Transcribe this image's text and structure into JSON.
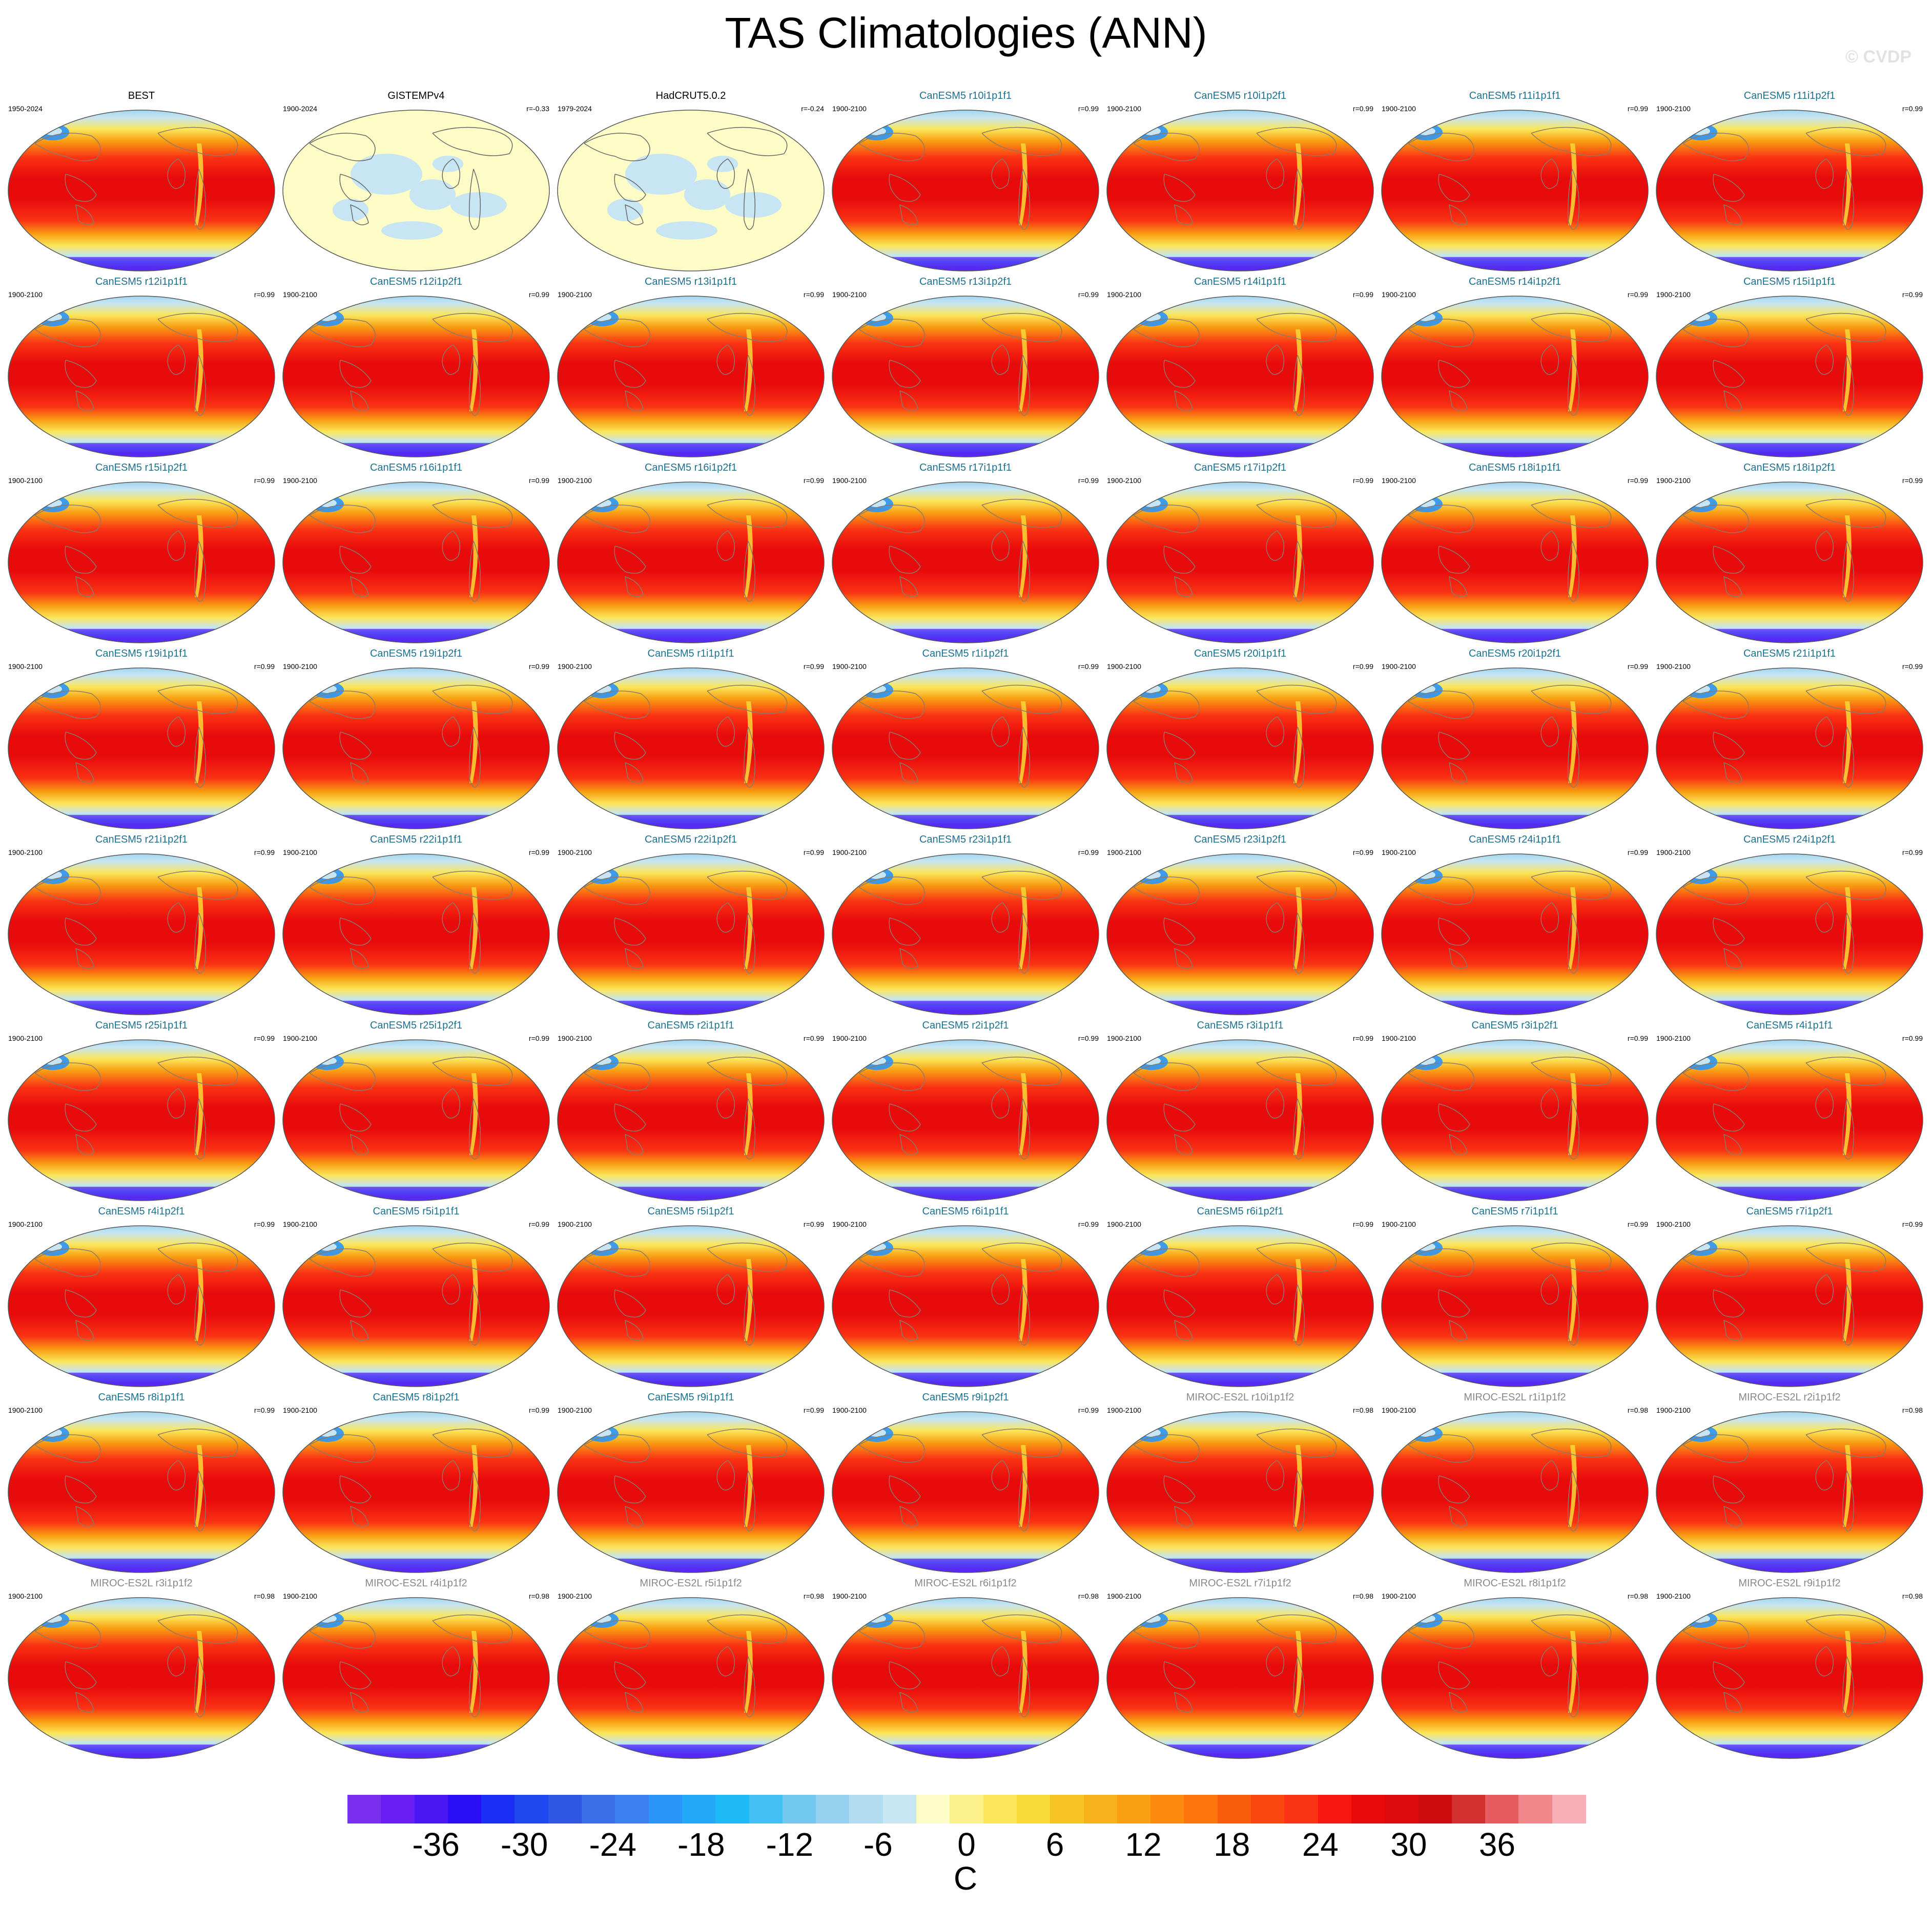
{
  "chart_data": {
    "type": "heatmap",
    "title": "TAS Climatologies (ANN)",
    "watermark": "© CVDP",
    "grid": {
      "rows": 9,
      "cols": 7
    },
    "panels": [
      {
        "title": "BEST",
        "years": "1950-2024",
        "r": "",
        "group": "obs"
      },
      {
        "title": "GISTEMPv4",
        "years": "1900-2024",
        "r": "r=-0.33",
        "group": "obs-sparse"
      },
      {
        "title": "HadCRUT5.0.2",
        "years": "1979-2024",
        "r": "r=-0.24",
        "group": "obs-sparse"
      },
      {
        "title": "CanESM5 r10i1p1f1",
        "years": "1900-2100",
        "r": "r=0.99",
        "group": "canesm"
      },
      {
        "title": "CanESM5 r10i1p2f1",
        "years": "1900-2100",
        "r": "r=0.99",
        "group": "canesm"
      },
      {
        "title": "CanESM5 r11i1p1f1",
        "years": "1900-2100",
        "r": "r=0.99",
        "group": "canesm"
      },
      {
        "title": "CanESM5 r11i1p2f1",
        "years": "1900-2100",
        "r": "r=0.99",
        "group": "canesm"
      },
      {
        "title": "CanESM5 r12i1p1f1",
        "years": "1900-2100",
        "r": "r=0.99",
        "group": "canesm"
      },
      {
        "title": "CanESM5 r12i1p2f1",
        "years": "1900-2100",
        "r": "r=0.99",
        "group": "canesm"
      },
      {
        "title": "CanESM5 r13i1p1f1",
        "years": "1900-2100",
        "r": "r=0.99",
        "group": "canesm"
      },
      {
        "title": "CanESM5 r13i1p2f1",
        "years": "1900-2100",
        "r": "r=0.99",
        "group": "canesm"
      },
      {
        "title": "CanESM5 r14i1p1f1",
        "years": "1900-2100",
        "r": "r=0.99",
        "group": "canesm"
      },
      {
        "title": "CanESM5 r14i1p2f1",
        "years": "1900-2100",
        "r": "r=0.99",
        "group": "canesm"
      },
      {
        "title": "CanESM5 r15i1p1f1",
        "years": "1900-2100",
        "r": "r=0.99",
        "group": "canesm"
      },
      {
        "title": "CanESM5 r15i1p2f1",
        "years": "1900-2100",
        "r": "r=0.99",
        "group": "canesm"
      },
      {
        "title": "CanESM5 r16i1p1f1",
        "years": "1900-2100",
        "r": "r=0.99",
        "group": "canesm"
      },
      {
        "title": "CanESM5 r16i1p2f1",
        "years": "1900-2100",
        "r": "r=0.99",
        "group": "canesm"
      },
      {
        "title": "CanESM5 r17i1p1f1",
        "years": "1900-2100",
        "r": "r=0.99",
        "group": "canesm"
      },
      {
        "title": "CanESM5 r17i1p2f1",
        "years": "1900-2100",
        "r": "r=0.99",
        "group": "canesm"
      },
      {
        "title": "CanESM5 r18i1p1f1",
        "years": "1900-2100",
        "r": "r=0.99",
        "group": "canesm"
      },
      {
        "title": "CanESM5 r18i1p2f1",
        "years": "1900-2100",
        "r": "r=0.99",
        "group": "canesm"
      },
      {
        "title": "CanESM5 r19i1p1f1",
        "years": "1900-2100",
        "r": "r=0.99",
        "group": "canesm"
      },
      {
        "title": "CanESM5 r19i1p2f1",
        "years": "1900-2100",
        "r": "r=0.99",
        "group": "canesm"
      },
      {
        "title": "CanESM5 r1i1p1f1",
        "years": "1900-2100",
        "r": "r=0.99",
        "group": "canesm"
      },
      {
        "title": "CanESM5 r1i1p2f1",
        "years": "1900-2100",
        "r": "r=0.99",
        "group": "canesm"
      },
      {
        "title": "CanESM5 r20i1p1f1",
        "years": "1900-2100",
        "r": "r=0.99",
        "group": "canesm"
      },
      {
        "title": "CanESM5 r20i1p2f1",
        "years": "1900-2100",
        "r": "r=0.99",
        "group": "canesm"
      },
      {
        "title": "CanESM5 r21i1p1f1",
        "years": "1900-2100",
        "r": "r=0.99",
        "group": "canesm"
      },
      {
        "title": "CanESM5 r21i1p2f1",
        "years": "1900-2100",
        "r": "r=0.99",
        "group": "canesm"
      },
      {
        "title": "CanESM5 r22i1p1f1",
        "years": "1900-2100",
        "r": "r=0.99",
        "group": "canesm"
      },
      {
        "title": "CanESM5 r22i1p2f1",
        "years": "1900-2100",
        "r": "r=0.99",
        "group": "canesm"
      },
      {
        "title": "CanESM5 r23i1p1f1",
        "years": "1900-2100",
        "r": "r=0.99",
        "group": "canesm"
      },
      {
        "title": "CanESM5 r23i1p2f1",
        "years": "1900-2100",
        "r": "r=0.99",
        "group": "canesm"
      },
      {
        "title": "CanESM5 r24i1p1f1",
        "years": "1900-2100",
        "r": "r=0.99",
        "group": "canesm"
      },
      {
        "title": "CanESM5 r24i1p2f1",
        "years": "1900-2100",
        "r": "r=0.99",
        "group": "canesm"
      },
      {
        "title": "CanESM5 r25i1p1f1",
        "years": "1900-2100",
        "r": "r=0.99",
        "group": "canesm"
      },
      {
        "title": "CanESM5 r25i1p2f1",
        "years": "1900-2100",
        "r": "r=0.99",
        "group": "canesm"
      },
      {
        "title": "CanESM5 r2i1p1f1",
        "years": "1900-2100",
        "r": "r=0.99",
        "group": "canesm"
      },
      {
        "title": "CanESM5 r2i1p2f1",
        "years": "1900-2100",
        "r": "r=0.99",
        "group": "canesm"
      },
      {
        "title": "CanESM5 r3i1p1f1",
        "years": "1900-2100",
        "r": "r=0.99",
        "group": "canesm"
      },
      {
        "title": "CanESM5 r3i1p2f1",
        "years": "1900-2100",
        "r": "r=0.99",
        "group": "canesm"
      },
      {
        "title": "CanESM5 r4i1p1f1",
        "years": "1900-2100",
        "r": "r=0.99",
        "group": "canesm"
      },
      {
        "title": "CanESM5 r4i1p2f1",
        "years": "1900-2100",
        "r": "r=0.99",
        "group": "canesm"
      },
      {
        "title": "CanESM5 r5i1p1f1",
        "years": "1900-2100",
        "r": "r=0.99",
        "group": "canesm"
      },
      {
        "title": "CanESM5 r5i1p2f1",
        "years": "1900-2100",
        "r": "r=0.99",
        "group": "canesm"
      },
      {
        "title": "CanESM5 r6i1p1f1",
        "years": "1900-2100",
        "r": "r=0.99",
        "group": "canesm"
      },
      {
        "title": "CanESM5 r6i1p2f1",
        "years": "1900-2100",
        "r": "r=0.99",
        "group": "canesm"
      },
      {
        "title": "CanESM5 r7i1p1f1",
        "years": "1900-2100",
        "r": "r=0.99",
        "group": "canesm"
      },
      {
        "title": "CanESM5 r7i1p2f1",
        "years": "1900-2100",
        "r": "r=0.99",
        "group": "canesm"
      },
      {
        "title": "CanESM5 r8i1p1f1",
        "years": "1900-2100",
        "r": "r=0.99",
        "group": "canesm"
      },
      {
        "title": "CanESM5 r8i1p2f1",
        "years": "1900-2100",
        "r": "r=0.99",
        "group": "canesm"
      },
      {
        "title": "CanESM5 r9i1p1f1",
        "years": "1900-2100",
        "r": "r=0.99",
        "group": "canesm"
      },
      {
        "title": "CanESM5 r9i1p2f1",
        "years": "1900-2100",
        "r": "r=0.99",
        "group": "canesm"
      },
      {
        "title": "MIROC-ES2L r10i1p1f2",
        "years": "1900-2100",
        "r": "r=0.98",
        "group": "miroc"
      },
      {
        "title": "MIROC-ES2L r1i1p1f2",
        "years": "1900-2100",
        "r": "r=0.98",
        "group": "miroc"
      },
      {
        "title": "MIROC-ES2L r2i1p1f2",
        "years": "1900-2100",
        "r": "r=0.98",
        "group": "miroc"
      },
      {
        "title": "MIROC-ES2L r3i1p1f2",
        "years": "1900-2100",
        "r": "r=0.98",
        "group": "miroc"
      },
      {
        "title": "MIROC-ES2L r4i1p1f2",
        "years": "1900-2100",
        "r": "r=0.98",
        "group": "miroc"
      },
      {
        "title": "MIROC-ES2L r5i1p1f2",
        "years": "1900-2100",
        "r": "r=0.98",
        "group": "miroc"
      },
      {
        "title": "MIROC-ES2L r6i1p1f2",
        "years": "1900-2100",
        "r": "r=0.98",
        "group": "miroc"
      },
      {
        "title": "MIROC-ES2L r7i1p1f2",
        "years": "1900-2100",
        "r": "r=0.98",
        "group": "miroc"
      },
      {
        "title": "MIROC-ES2L r8i1p1f2",
        "years": "1900-2100",
        "r": "r=0.98",
        "group": "miroc"
      },
      {
        "title": "MIROC-ES2L r9i1p1f2",
        "years": "1900-2100",
        "r": "r=0.98",
        "group": "miroc"
      }
    ],
    "colorbar": {
      "unit": "C",
      "range": [
        -42,
        42
      ],
      "ticks": [
        "-36",
        "-30",
        "-24",
        "-18",
        "-12",
        "-6",
        "0",
        "6",
        "12",
        "18",
        "24",
        "30",
        "36"
      ],
      "tick_values": [
        -36,
        -30,
        -24,
        -18,
        -12,
        -6,
        0,
        6,
        12,
        18,
        24,
        30,
        36
      ],
      "colors": [
        "#7a2ff0",
        "#6a1ff5",
        "#4a17f5",
        "#2a0ff5",
        "#1a2ef5",
        "#2048ef",
        "#3058e5",
        "#3a6ee8",
        "#3b82f0",
        "#2a94f8",
        "#23a8f7",
        "#1fbaf5",
        "#44c0f4",
        "#72c8ef",
        "#95d0ee",
        "#b2dcf0",
        "#c7e5f2",
        "#fdfbc6",
        "#fbf08a",
        "#fbe65a",
        "#f8d935",
        "#f7c424",
        "#f8b21c",
        "#f99f12",
        "#fb8a0e",
        "#fb750c",
        "#f95d0c",
        "#f9470f",
        "#fa3314",
        "#f71911",
        "#e80b0c",
        "#dc0a0c",
        "#cc0c0f",
        "#d33030",
        "#e85c60",
        "#f0868a",
        "#f8b0b6"
      ]
    }
  }
}
